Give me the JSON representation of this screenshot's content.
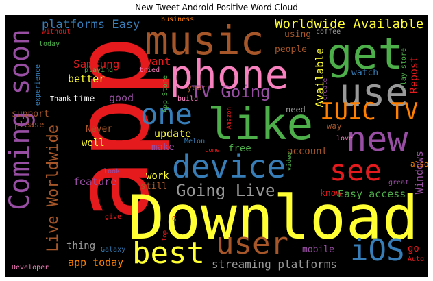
{
  "title": "New Tweet Android Positive Word Cloud",
  "palette": {
    "red": "#e41a1c",
    "blue": "#377eb8",
    "green": "#4daf4a",
    "purple": "#984ea3",
    "orange": "#ff7f00",
    "yellow": "#ffff33",
    "brown": "#a65628",
    "pink": "#f781bf",
    "gray": "#999999"
  },
  "words": [
    "app",
    "Download",
    "music",
    "phone",
    "get",
    "use",
    "like",
    "new",
    "one",
    "device",
    "see",
    "Coming soon",
    "IUIC TV",
    "best",
    "user",
    "iOS",
    "TV Going",
    "Going Live",
    "Live Worldwide",
    "Worldwide Available",
    "platforms Easy",
    "Samsung",
    "want",
    "streaming platforms",
    "Available",
    "Easy access",
    "Repost",
    "Windows",
    "feature",
    "update",
    "app today",
    "people",
    "using",
    "watch",
    "mobile",
    "work",
    "make",
    "account",
    "free",
    "good",
    "better",
    "time",
    "year",
    "need",
    "thing",
    "well",
    "Never",
    "still",
    "know",
    "way",
    "go",
    "support",
    "please",
    "without",
    "today",
    "business",
    "coffee",
    "Play store",
    "App Store",
    "playing",
    "tried",
    "experience",
    "Thank",
    "build",
    "Amazon",
    "Melon",
    "come",
    "video",
    "love",
    "look",
    "also",
    "great",
    "give",
    "G",
    "Galaxy",
    "Top",
    "Developer",
    "Auto",
    "create"
  ]
}
